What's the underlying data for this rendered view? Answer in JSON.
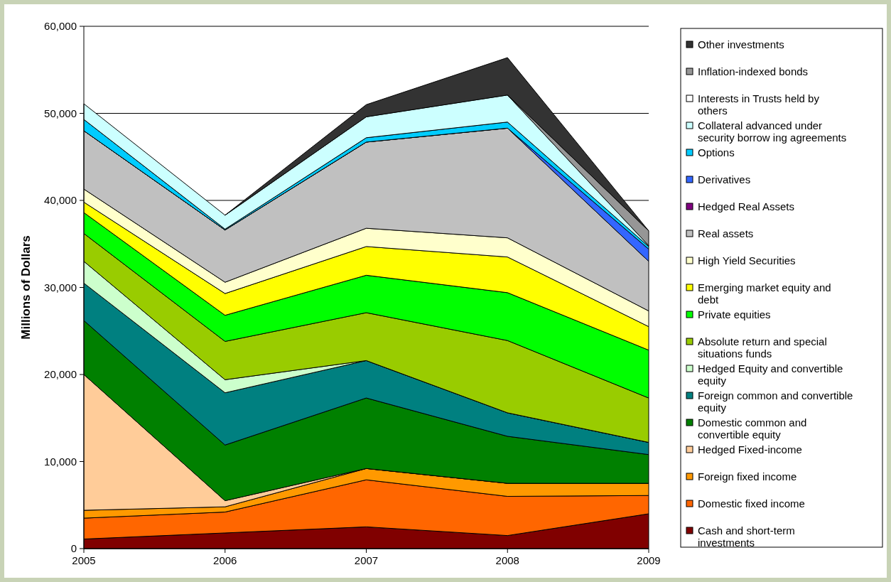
{
  "chart_data": {
    "type": "area",
    "stacked": true,
    "ylabel": "Millions of Dollars",
    "categories": [
      "2005",
      "2006",
      "2007",
      "2008",
      "2009"
    ],
    "ylim": [
      0,
      60000
    ],
    "yticks": [
      {
        "value": 0,
        "label": "0"
      },
      {
        "value": 10000,
        "label": "10,000"
      },
      {
        "value": 20000,
        "label": "20,000"
      },
      {
        "value": 30000,
        "label": "30,000"
      },
      {
        "value": 40000,
        "label": "40,000"
      },
      {
        "value": 50000,
        "label": "50,000"
      },
      {
        "value": 60000,
        "label": "60,000"
      }
    ],
    "grid": "y",
    "legend": "right",
    "series": [
      {
        "name": "Cash and short-term investments",
        "color": "#800000",
        "values": [
          1100,
          1800,
          2500,
          1500,
          4000
        ]
      },
      {
        "name": "Domestic fixed income",
        "color": "#ff6600",
        "values": [
          2400,
          2400,
          5400,
          4500,
          2100
        ]
      },
      {
        "name": "Foreign fixed income",
        "color": "#ff9900",
        "values": [
          900,
          600,
          1300,
          1500,
          1400
        ]
      },
      {
        "name": "Hedged Fixed-income",
        "color": "#ffcc99",
        "values": [
          15600,
          700,
          0,
          0,
          0
        ]
      },
      {
        "name": "Domestic common and convertible equity",
        "color": "#008000",
        "values": [
          6200,
          6400,
          8100,
          5400,
          3300
        ]
      },
      {
        "name": "Foreign common and convertible equity",
        "color": "#008080",
        "values": [
          4300,
          6000,
          4300,
          2700,
          1400
        ]
      },
      {
        "name": "Hedged Equity and convertible equity",
        "color": "#ccffcc",
        "values": [
          2500,
          1500,
          0,
          0,
          0
        ]
      },
      {
        "name": "Absolute return and special situations funds",
        "color": "#99cc00",
        "values": [
          3200,
          4400,
          5500,
          8300,
          5100
        ]
      },
      {
        "name": "Private equities",
        "color": "#00ff00",
        "values": [
          2400,
          3000,
          4300,
          5500,
          5500
        ]
      },
      {
        "name": "Emerging market equity and debt",
        "color": "#ffff00",
        "values": [
          1200,
          2500,
          3300,
          4100,
          2700
        ]
      },
      {
        "name": "High Yield Securities",
        "color": "#ffffcc",
        "values": [
          1500,
          1300,
          2100,
          2200,
          1800
        ]
      },
      {
        "name": "Real assets",
        "color": "#c0c0c0",
        "values": [
          6700,
          6000,
          9900,
          12600,
          5700
        ]
      },
      {
        "name": "Hedged Real Assets",
        "color": "#800080",
        "values": [
          null,
          null,
          null,
          null,
          null
        ]
      },
      {
        "name": "Derivatives",
        "color": "#3366ff",
        "values": [
          0,
          0,
          0,
          0,
          1400
        ]
      },
      {
        "name": "Options",
        "color": "#00ccff",
        "values": [
          1300,
          100,
          500,
          700,
          300
        ]
      },
      {
        "name": "Collateral advanced under security borrow ing agreements",
        "color": "#ccffff",
        "values": [
          1800,
          1600,
          2400,
          3100,
          100
        ]
      },
      {
        "name": "Interests in Trusts held by others",
        "color": "#ffffff",
        "values": [
          null,
          null,
          null,
          null,
          null
        ]
      },
      {
        "name": "Inflation-indexed bonds",
        "color": "#969696",
        "values": [
          null,
          null,
          null,
          0,
          1700
        ]
      },
      {
        "name": "Other investments",
        "color": "#333333",
        "values": [
          null,
          0,
          1400,
          4300,
          0
        ]
      }
    ]
  }
}
